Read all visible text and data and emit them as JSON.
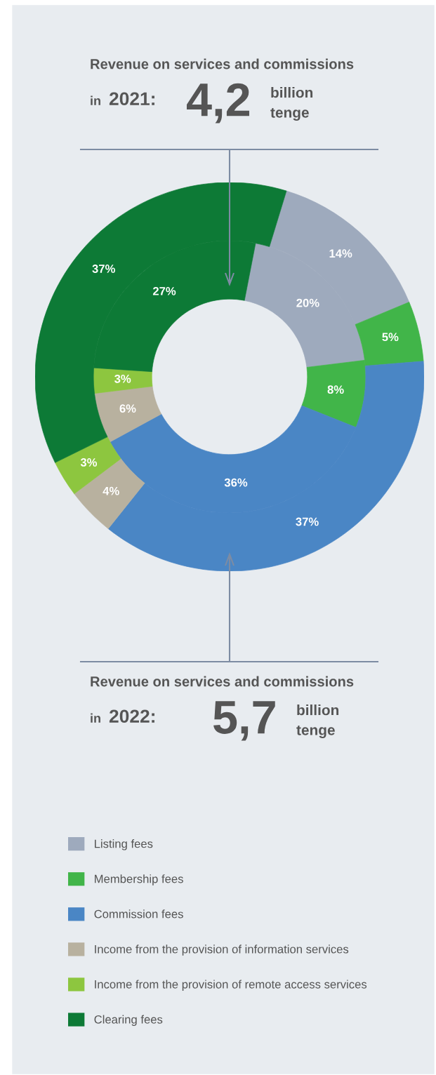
{
  "chart_data": {
    "type": "donut",
    "categories": [
      "Listing fees",
      "Membership fees",
      "Commission fees",
      "Income from the provision of information services",
      "Income from the provision of remote access services",
      "Clearing fees"
    ],
    "colors": [
      "#9eaabd",
      "#41b549",
      "#4a86c5",
      "#b8b19f",
      "#8dc63f",
      "#0d7a36"
    ],
    "series": [
      {
        "values": [
          20,
          8,
          36,
          6,
          3,
          27
        ],
        "value_labels": [
          "20%",
          "8%",
          "36%",
          "6%",
          "3%",
          "27%"
        ]
      },
      {
        "values": [
          14,
          5,
          37,
          4,
          3,
          37
        ],
        "value_labels": [
          "14%",
          "5%",
          "37%",
          "4%",
          "3%",
          "37%"
        ]
      }
    ],
    "legend": "bottom",
    "annotations": [
      "Revenue on services and commissions",
      "in",
      "2021:",
      "4,2",
      "billion\ntenge",
      "Revenue on services and commissions",
      "in",
      "2022:",
      "5,7",
      "billion\ntenge"
    ]
  }
}
